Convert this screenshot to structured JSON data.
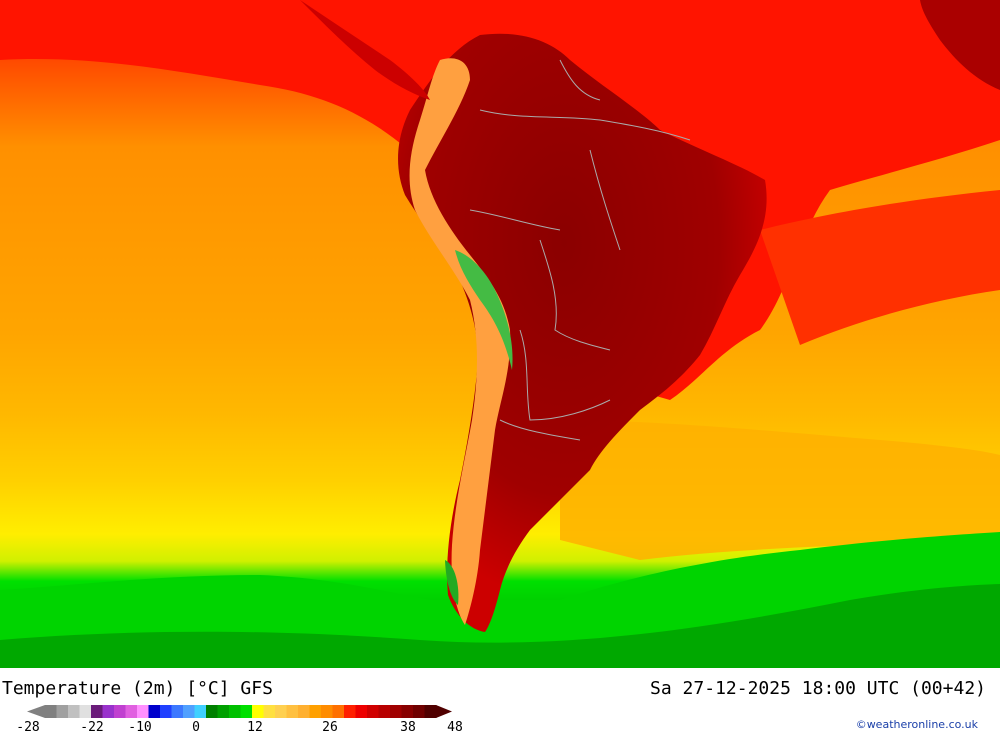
{
  "map": {
    "region": "South America",
    "variable": "2 m air temperature",
    "colors": {
      "ocean_tropical": "#ff0000",
      "ocean_warm": "#ff8c00",
      "ocean_mild": "#ffa500",
      "ocean_yellow": "#ffd700",
      "ocean_cool": "#00dd00",
      "ocean_cold": "#009900",
      "land_hot": "#b00000",
      "land_very_hot": "#8b0000",
      "andes_cool": "#44bb44",
      "borders": "#aaaaaa"
    }
  },
  "footer": {
    "title": "Temperature (2m) [°C] GFS",
    "timestamp": "Sa 27-12-2025 18:00 UTC (00+42)",
    "credit": "©weatheronline.co.uk"
  },
  "legend": {
    "tick_labels": [
      "-28",
      "-22",
      "-10",
      "0",
      "12",
      "26",
      "38",
      "48"
    ],
    "swatches": [
      "#808080",
      "#a0a0a0",
      "#c0c0c0",
      "#e0e0e0",
      "#6a1b7a",
      "#9932cc",
      "#c040d0",
      "#e060e0",
      "#ff90ff",
      "#0000cc",
      "#2040ff",
      "#3c78ff",
      "#50a0ff",
      "#40d0ff",
      "#008000",
      "#00a000",
      "#00c000",
      "#00e000",
      "#ffff00",
      "#ffe040",
      "#ffd050",
      "#ffc040",
      "#ffb030",
      "#ffa000",
      "#ff8c00",
      "#ff7000",
      "#ff2000",
      "#ee0000",
      "#d00000",
      "#b80000",
      "#a00000",
      "#880000",
      "#700000",
      "#500000"
    ]
  }
}
